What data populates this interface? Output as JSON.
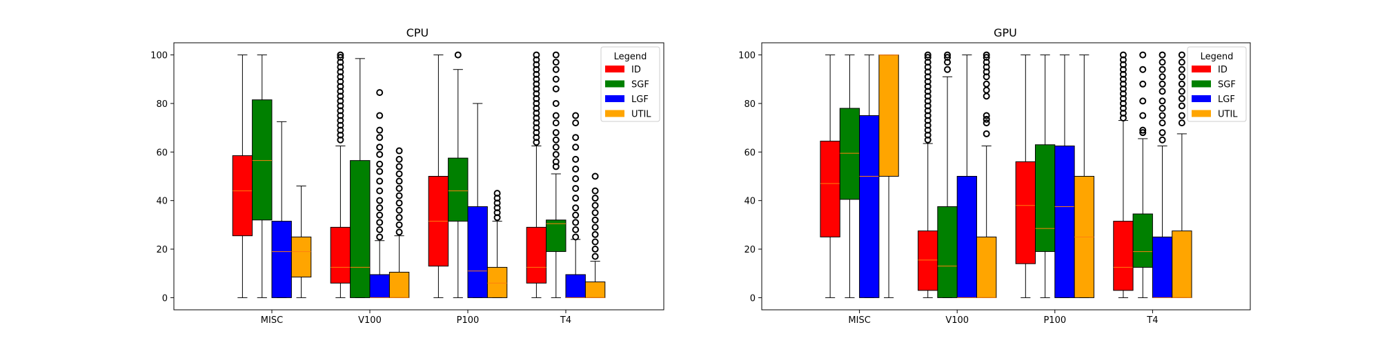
{
  "chart_data": [
    {
      "type": "box",
      "title": "CPU",
      "xlabel": "",
      "ylabel": "",
      "ylim": [
        -5,
        105
      ],
      "yticks": [
        0,
        20,
        40,
        60,
        80,
        100
      ],
      "categories": [
        "MISC",
        "V100",
        "P100",
        "T4"
      ],
      "legend": {
        "title": "Legend",
        "placement": "top-right"
      },
      "series": [
        {
          "name": "ID",
          "color": "#ff0000",
          "boxes": [
            {
              "whislo": 0,
              "q1": 25.5,
              "med": 44,
              "q3": 58.5,
              "whishi": 100,
              "fliers": []
            },
            {
              "whislo": 0,
              "q1": 6,
              "med": 12.5,
              "q3": 29,
              "whishi": 62.5,
              "fliers": [
                65,
                67,
                69,
                71,
                73,
                75,
                77,
                79,
                81,
                83,
                85,
                87,
                89,
                91,
                93,
                95,
                97,
                99,
                100
              ]
            },
            {
              "whislo": 0,
              "q1": 13,
              "med": 31.5,
              "q3": 50,
              "whishi": 100,
              "fliers": []
            },
            {
              "whislo": 0,
              "q1": 6,
              "med": 12.5,
              "q3": 29,
              "whishi": 62.5,
              "fliers": [
                64,
                66,
                68,
                70,
                72,
                74,
                76,
                78,
                80,
                82,
                84,
                86,
                88,
                90,
                92,
                94,
                96,
                98,
                100
              ]
            }
          ]
        },
        {
          "name": "SGF",
          "color": "#008000",
          "boxes": [
            {
              "whislo": 0,
              "q1": 32,
              "med": 56.5,
              "q3": 81.5,
              "whishi": 100,
              "fliers": []
            },
            {
              "whislo": 0,
              "q1": 0,
              "med": 12.5,
              "q3": 56.5,
              "whishi": 98.5,
              "fliers": []
            },
            {
              "whislo": 0,
              "q1": 31.5,
              "med": 44,
              "q3": 57.5,
              "whishi": 94,
              "fliers": [
                100
              ]
            },
            {
              "whislo": 0,
              "q1": 19,
              "med": 30.5,
              "q3": 32,
              "whishi": 51,
              "fliers": [
                54,
                56,
                59,
                62,
                65,
                68,
                72,
                75,
                80,
                86,
                90,
                94,
                97,
                100
              ]
            }
          ]
        },
        {
          "name": "LGF",
          "color": "#0000ff",
          "boxes": [
            {
              "whislo": 0,
              "q1": 0,
              "med": 19,
              "q3": 31.5,
              "whishi": 72.5,
              "fliers": []
            },
            {
              "whislo": 0,
              "q1": 0,
              "med": 0,
              "q3": 9.5,
              "whishi": 23.5,
              "fliers": [
                25,
                28,
                31,
                34,
                37,
                40,
                44,
                48,
                52,
                55,
                59,
                62,
                66,
                69,
                75,
                84.5
              ]
            },
            {
              "whislo": 0,
              "q1": 0,
              "med": 11,
              "q3": 37.5,
              "whishi": 80,
              "fliers": []
            },
            {
              "whislo": 0,
              "q1": 0,
              "med": 0,
              "q3": 9.5,
              "whishi": 24,
              "fliers": [
                25,
                28,
                31,
                34,
                37,
                41,
                45,
                49,
                53,
                57,
                62,
                66,
                72,
                75
              ]
            }
          ]
        },
        {
          "name": "UTIL",
          "color": "#ffa500",
          "boxes": [
            {
              "whislo": 0,
              "q1": 8.5,
              "med": 19,
              "q3": 25,
              "whishi": 46,
              "fliers": []
            },
            {
              "whislo": 0,
              "q1": 0,
              "med": 0,
              "q3": 10.5,
              "whishi": 25.5,
              "fliers": [
                27,
                30,
                33,
                36,
                39,
                42,
                45,
                48,
                51,
                54,
                57,
                60.5
              ]
            },
            {
              "whislo": 0,
              "q1": 0,
              "med": 6,
              "q3": 12.5,
              "whishi": 31.5,
              "fliers": [
                33,
                35,
                37,
                39,
                41,
                43
              ]
            },
            {
              "whislo": 0,
              "q1": 0,
              "med": 0,
              "q3": 6.5,
              "whishi": 15,
              "fliers": [
                17,
                20,
                23,
                26,
                29,
                32,
                35,
                38,
                41,
                44,
                50
              ]
            }
          ]
        }
      ]
    },
    {
      "type": "box",
      "title": "GPU",
      "xlabel": "",
      "ylabel": "",
      "ylim": [
        -5,
        105
      ],
      "yticks": [
        0,
        20,
        40,
        60,
        80,
        100
      ],
      "categories": [
        "MISC",
        "V100",
        "P100",
        "T4"
      ],
      "legend": {
        "title": "Legend",
        "placement": "top-right"
      },
      "series": [
        {
          "name": "ID",
          "color": "#ff0000",
          "boxes": [
            {
              "whislo": 0,
              "q1": 25,
              "med": 47,
              "q3": 64.5,
              "whishi": 100,
              "fliers": []
            },
            {
              "whislo": 0,
              "q1": 3,
              "med": 15.5,
              "q3": 27.5,
              "whishi": 63.5,
              "fliers": [
                65,
                67,
                69,
                71,
                73,
                75,
                77,
                79,
                81,
                83,
                85,
                87,
                89,
                91,
                93,
                95,
                97,
                99,
                100
              ]
            },
            {
              "whislo": 0,
              "q1": 14,
              "med": 38,
              "q3": 56,
              "whishi": 100,
              "fliers": []
            },
            {
              "whislo": 0,
              "q1": 3,
              "med": 12.5,
              "q3": 31.5,
              "whishi": 73,
              "fliers": [
                74,
                76,
                78,
                80,
                82,
                84,
                86,
                88,
                90,
                92,
                94,
                96,
                98,
                100
              ]
            }
          ]
        },
        {
          "name": "SGF",
          "color": "#008000",
          "boxes": [
            {
              "whislo": 0,
              "q1": 40.5,
              "med": 59.5,
              "q3": 78,
              "whishi": 100,
              "fliers": []
            },
            {
              "whislo": 0,
              "q1": 0,
              "med": 13,
              "q3": 37.5,
              "whishi": 91,
              "fliers": [
                94,
                97,
                99,
                100
              ]
            },
            {
              "whislo": 0,
              "q1": 19,
              "med": 28.5,
              "q3": 63,
              "whishi": 100,
              "fliers": []
            },
            {
              "whislo": 0,
              "q1": 12.5,
              "med": 19,
              "q3": 34.5,
              "whishi": 65.5,
              "fliers": [
                68,
                69,
                75,
                81,
                88,
                94,
                100
              ]
            }
          ]
        },
        {
          "name": "LGF",
          "color": "#0000ff",
          "boxes": [
            {
              "whislo": 0,
              "q1": 0,
              "med": 50,
              "q3": 75,
              "whishi": 100,
              "fliers": []
            },
            {
              "whislo": 0,
              "q1": 0,
              "med": 0,
              "q3": 50,
              "whishi": 100,
              "fliers": []
            },
            {
              "whislo": 0,
              "q1": 0,
              "med": 37.5,
              "q3": 62.5,
              "whishi": 100,
              "fliers": []
            },
            {
              "whislo": 0,
              "q1": 0,
              "med": 0,
              "q3": 25,
              "whishi": 62.5,
              "fliers": [
                65,
                68,
                72,
                75,
                78,
                81,
                85,
                88,
                91,
                94,
                97,
                100
              ]
            }
          ]
        },
        {
          "name": "UTIL",
          "color": "#ffa500",
          "boxes": [
            {
              "whislo": 0,
              "q1": 50,
              "med": 100,
              "q3": 100,
              "whishi": 100,
              "fliers": []
            },
            {
              "whislo": 0,
              "q1": 0,
              "med": 0,
              "q3": 25,
              "whishi": 62.5,
              "fliers": [
                67.5,
                72,
                73.5,
                75,
                83,
                85.5,
                88,
                91,
                93,
                95,
                97,
                99,
                100
              ]
            },
            {
              "whislo": 0,
              "q1": 0,
              "med": 25,
              "q3": 50,
              "whishi": 100,
              "fliers": []
            },
            {
              "whislo": 0,
              "q1": 0,
              "med": 0,
              "q3": 27.5,
              "whishi": 67.5,
              "fliers": [
                72,
                75,
                79,
                82,
                85,
                88,
                91,
                94,
                97,
                100
              ]
            }
          ]
        }
      ]
    }
  ]
}
